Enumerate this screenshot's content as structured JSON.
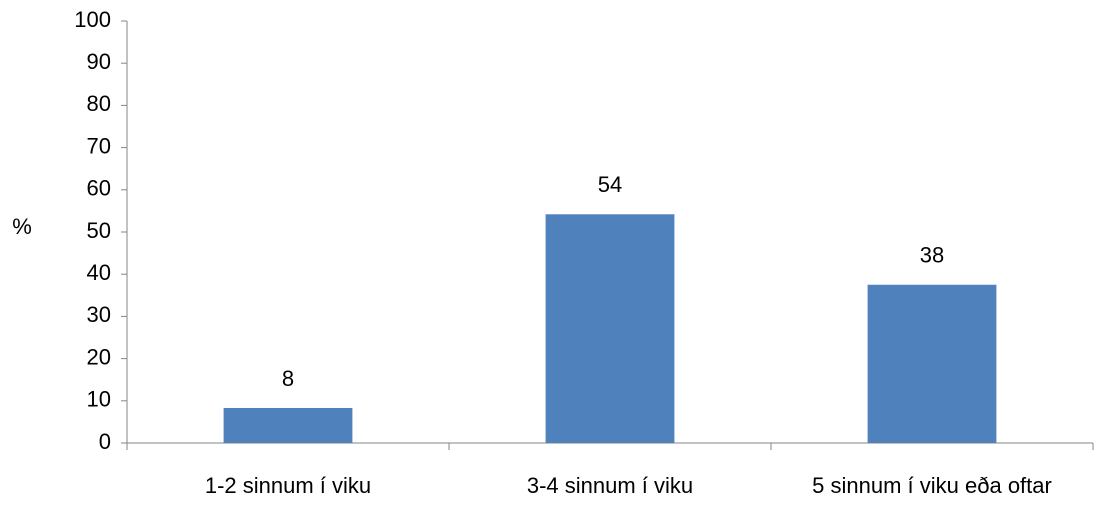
{
  "chart_data": {
    "type": "bar",
    "ylabel": "%",
    "categories": [
      "1-2 sinnum í viku",
      "3-4 sinnum í viku",
      "5 sinnum í viku eða oftar"
    ],
    "values": [
      8.3,
      54.2,
      37.5
    ],
    "value_labels": [
      "8",
      "54",
      "38"
    ],
    "color": "#4f81bd",
    "ylim": [
      0,
      100
    ],
    "yticks": [
      0,
      10,
      20,
      30,
      40,
      50,
      60,
      70,
      80,
      90,
      100
    ]
  }
}
